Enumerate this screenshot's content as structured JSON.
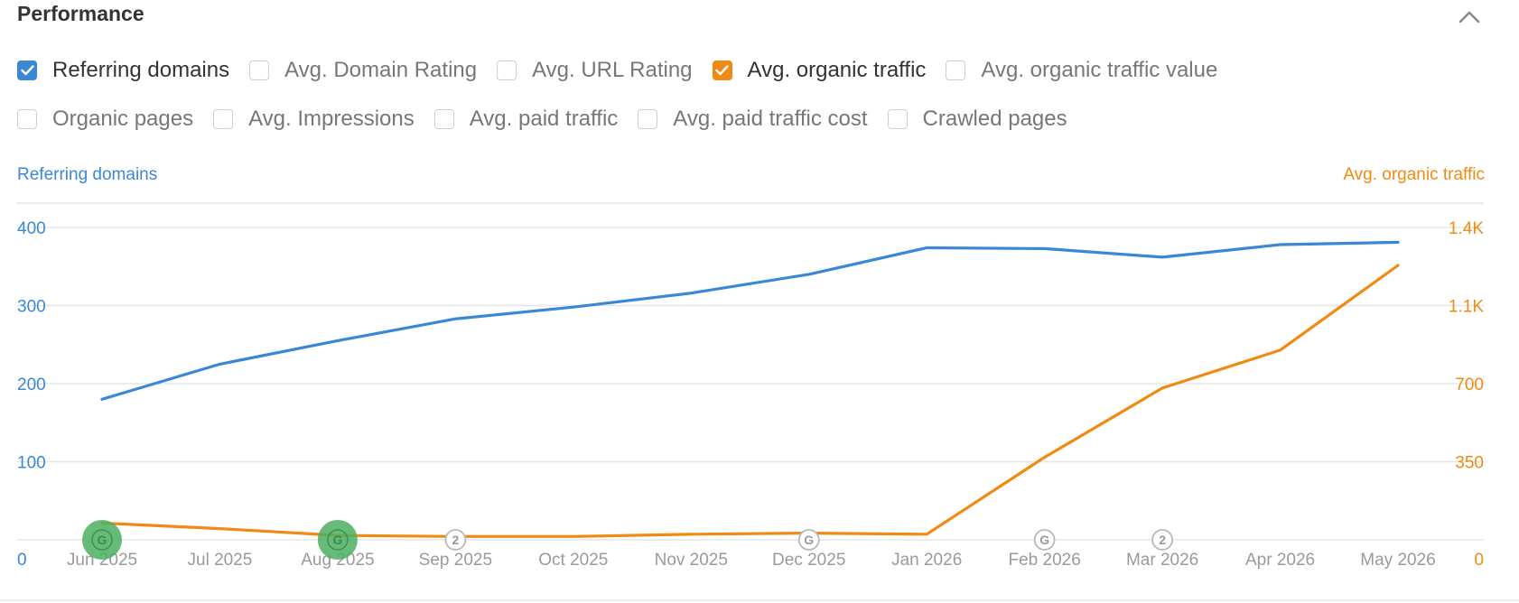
{
  "panel": {
    "title": "Performance",
    "collapse_icon": "chevron-up-icon"
  },
  "metrics": {
    "row1": [
      {
        "label": "Referring domains",
        "checked": true,
        "color": "#3a87d6"
      },
      {
        "label": "Avg. Domain Rating",
        "checked": false
      },
      {
        "label": "Avg. URL Rating",
        "checked": false
      },
      {
        "label": "Avg. organic traffic",
        "checked": true,
        "color": "#f08a12"
      },
      {
        "label": "Avg. organic traffic value",
        "checked": false
      }
    ],
    "row2": [
      {
        "label": "Organic pages",
        "checked": false
      },
      {
        "label": "Avg. Impressions",
        "checked": false
      },
      {
        "label": "Avg. paid traffic",
        "checked": false
      },
      {
        "label": "Avg. paid traffic cost",
        "checked": false
      },
      {
        "label": "Crawled pages",
        "checked": false
      }
    ]
  },
  "chart_data": {
    "type": "line",
    "x": [
      "Jun 2025",
      "Jul 2025",
      "Aug 2025",
      "Sep 2025",
      "Oct 2025",
      "Nov 2025",
      "Dec 2025",
      "Jan 2026",
      "Feb 2026",
      "Mar 2026",
      "Apr 2026",
      "May 2026"
    ],
    "left_axis": {
      "title": "Referring domains",
      "ticks": [
        "0",
        "100",
        "200",
        "300",
        "400"
      ],
      "ylim": [
        0,
        400
      ],
      "color": "#3a87d6"
    },
    "right_axis": {
      "title": "Avg. organic traffic",
      "ticks": [
        "0",
        "350",
        "700",
        "1.1K",
        "1.4K"
      ],
      "ylim": [
        0,
        1400
      ],
      "color": "#f08a12"
    },
    "series": [
      {
        "name": "Referring domains",
        "axis": "left",
        "color": "#3a87d6",
        "values": [
          180,
          225,
          255,
          283,
          298,
          316,
          340,
          374,
          373,
          362,
          378,
          381
        ]
      },
      {
        "name": "Avg. organic traffic",
        "axis": "right",
        "color": "#f08a12",
        "values": [
          75,
          50,
          20,
          15,
          15,
          25,
          30,
          25,
          370,
          680,
          850,
          1230
        ]
      }
    ],
    "grid": true,
    "annotations": [
      {
        "x": "Jun 2025",
        "icon": "google-update-icon",
        "label": "G",
        "highlighted": true,
        "color": "#4caf60"
      },
      {
        "x": "Aug 2025",
        "icon": "google-update-icon",
        "label": "G",
        "highlighted": true,
        "color": "#4caf60"
      },
      {
        "x": "Sep 2025",
        "icon": "count-marker-icon",
        "label": "2",
        "highlighted": false
      },
      {
        "x": "Dec 2025",
        "icon": "google-update-icon",
        "label": "G",
        "highlighted": false
      },
      {
        "x": "Feb 2026",
        "icon": "google-update-icon",
        "label": "G",
        "highlighted": false
      },
      {
        "x": "Mar 2026",
        "icon": "count-marker-icon",
        "label": "2",
        "highlighted": false
      }
    ]
  }
}
